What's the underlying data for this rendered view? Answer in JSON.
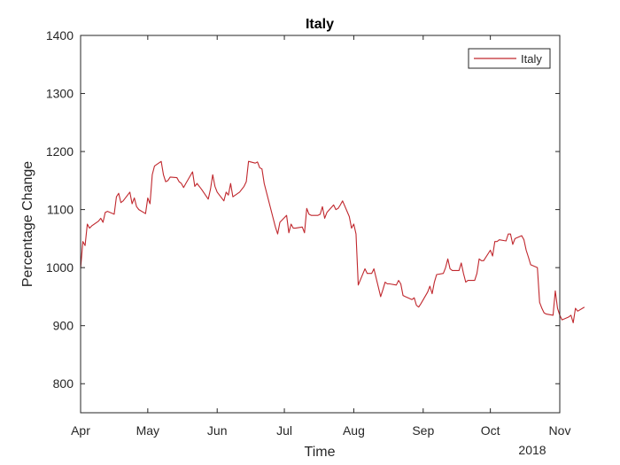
{
  "chart_data": {
    "type": "line",
    "title": "Italy",
    "xlabel": "Time",
    "ylabel": "Percentage Change",
    "year_label": "2018",
    "ylim": [
      750,
      1400
    ],
    "yticks": [
      800,
      900,
      1000,
      1100,
      1200,
      1300,
      1400
    ],
    "xlim": [
      "2018-04-01",
      "2018-11-01"
    ],
    "xticks": [
      {
        "date": "2018-04-01",
        "label": "Apr"
      },
      {
        "date": "2018-05-01",
        "label": "May"
      },
      {
        "date": "2018-06-01",
        "label": "Jun"
      },
      {
        "date": "2018-07-01",
        "label": "Jul"
      },
      {
        "date": "2018-08-01",
        "label": "Aug"
      },
      {
        "date": "2018-09-01",
        "label": "Sep"
      },
      {
        "date": "2018-10-01",
        "label": "Oct"
      },
      {
        "date": "2018-11-01",
        "label": "Nov"
      }
    ],
    "grid": false,
    "legend_position": "top-right",
    "series": [
      {
        "name": "Italy",
        "color": "#c0272d",
        "points": [
          [
            "2018-04-01",
            998
          ],
          [
            "2018-04-02",
            1045
          ],
          [
            "2018-04-03",
            1038
          ],
          [
            "2018-04-04",
            1075
          ],
          [
            "2018-04-05",
            1068
          ],
          [
            "2018-04-06",
            1072
          ],
          [
            "2018-04-09",
            1080
          ],
          [
            "2018-04-10",
            1085
          ],
          [
            "2018-04-11",
            1078
          ],
          [
            "2018-04-12",
            1095
          ],
          [
            "2018-04-13",
            1097
          ],
          [
            "2018-04-16",
            1092
          ],
          [
            "2018-04-17",
            1122
          ],
          [
            "2018-04-18",
            1128
          ],
          [
            "2018-04-19",
            1112
          ],
          [
            "2018-04-20",
            1115
          ],
          [
            "2018-04-23",
            1130
          ],
          [
            "2018-04-24",
            1110
          ],
          [
            "2018-04-25",
            1120
          ],
          [
            "2018-04-26",
            1105
          ],
          [
            "2018-04-27",
            1100
          ],
          [
            "2018-04-30",
            1093
          ],
          [
            "2018-05-01",
            1120
          ],
          [
            "2018-05-02",
            1110
          ],
          [
            "2018-05-03",
            1160
          ],
          [
            "2018-05-04",
            1175
          ],
          [
            "2018-05-07",
            1183
          ],
          [
            "2018-05-08",
            1160
          ],
          [
            "2018-05-09",
            1148
          ],
          [
            "2018-05-10",
            1150
          ],
          [
            "2018-05-11",
            1156
          ],
          [
            "2018-05-14",
            1155
          ],
          [
            "2018-05-15",
            1148
          ],
          [
            "2018-05-16",
            1145
          ],
          [
            "2018-05-17",
            1138
          ],
          [
            "2018-05-18",
            1145
          ],
          [
            "2018-05-21",
            1165
          ],
          [
            "2018-05-22",
            1140
          ],
          [
            "2018-05-23",
            1145
          ],
          [
            "2018-05-24",
            1140
          ],
          [
            "2018-05-25",
            1135
          ],
          [
            "2018-05-28",
            1118
          ],
          [
            "2018-05-29",
            1135
          ],
          [
            "2018-05-30",
            1160
          ],
          [
            "2018-05-31",
            1140
          ],
          [
            "2018-06-01",
            1130
          ],
          [
            "2018-06-04",
            1115
          ],
          [
            "2018-06-05",
            1130
          ],
          [
            "2018-06-06",
            1125
          ],
          [
            "2018-06-07",
            1145
          ],
          [
            "2018-06-08",
            1122
          ],
          [
            "2018-06-11",
            1130
          ],
          [
            "2018-06-12",
            1135
          ],
          [
            "2018-06-13",
            1140
          ],
          [
            "2018-06-14",
            1148
          ],
          [
            "2018-06-15",
            1183
          ],
          [
            "2018-06-18",
            1180
          ],
          [
            "2018-06-19",
            1182
          ],
          [
            "2018-06-20",
            1172
          ],
          [
            "2018-06-21",
            1170
          ],
          [
            "2018-06-22",
            1145
          ],
          [
            "2018-06-25",
            1100
          ],
          [
            "2018-06-26",
            1085
          ],
          [
            "2018-06-27",
            1070
          ],
          [
            "2018-06-28",
            1058
          ],
          [
            "2018-06-29",
            1078
          ],
          [
            "2018-07-02",
            1090
          ],
          [
            "2018-07-03",
            1060
          ],
          [
            "2018-07-04",
            1075
          ],
          [
            "2018-07-05",
            1068
          ],
          [
            "2018-07-06",
            1068
          ],
          [
            "2018-07-09",
            1070
          ],
          [
            "2018-07-10",
            1060
          ],
          [
            "2018-07-11",
            1102
          ],
          [
            "2018-07-12",
            1092
          ],
          [
            "2018-07-13",
            1090
          ],
          [
            "2018-07-16",
            1090
          ],
          [
            "2018-07-17",
            1092
          ],
          [
            "2018-07-18",
            1105
          ],
          [
            "2018-07-19",
            1085
          ],
          [
            "2018-07-20",
            1095
          ],
          [
            "2018-07-23",
            1108
          ],
          [
            "2018-07-24",
            1100
          ],
          [
            "2018-07-25",
            1102
          ],
          [
            "2018-07-26",
            1108
          ],
          [
            "2018-07-27",
            1115
          ],
          [
            "2018-07-30",
            1088
          ],
          [
            "2018-07-31",
            1068
          ],
          [
            "2018-08-01",
            1075
          ],
          [
            "2018-08-02",
            1058
          ],
          [
            "2018-08-03",
            970
          ],
          [
            "2018-08-06",
            998
          ],
          [
            "2018-08-07",
            990
          ],
          [
            "2018-08-08",
            990
          ],
          [
            "2018-08-09",
            990
          ],
          [
            "2018-08-10",
            998
          ],
          [
            "2018-08-13",
            950
          ],
          [
            "2018-08-14",
            962
          ],
          [
            "2018-08-15",
            975
          ],
          [
            "2018-08-16",
            972
          ],
          [
            "2018-08-17",
            972
          ],
          [
            "2018-08-20",
            970
          ],
          [
            "2018-08-21",
            978
          ],
          [
            "2018-08-22",
            972
          ],
          [
            "2018-08-23",
            952
          ],
          [
            "2018-08-24",
            950
          ],
          [
            "2018-08-27",
            945
          ],
          [
            "2018-08-28",
            948
          ],
          [
            "2018-08-29",
            935
          ],
          [
            "2018-08-30",
            932
          ],
          [
            "2018-08-31",
            938
          ],
          [
            "2018-09-03",
            958
          ],
          [
            "2018-09-04",
            968
          ],
          [
            "2018-09-05",
            955
          ],
          [
            "2018-09-06",
            975
          ],
          [
            "2018-09-07",
            988
          ],
          [
            "2018-09-10",
            990
          ],
          [
            "2018-09-11",
            1000
          ],
          [
            "2018-09-12",
            1015
          ],
          [
            "2018-09-13",
            998
          ],
          [
            "2018-09-14",
            995
          ],
          [
            "2018-09-17",
            995
          ],
          [
            "2018-09-18",
            1008
          ],
          [
            "2018-09-19",
            990
          ],
          [
            "2018-09-20",
            975
          ],
          [
            "2018-09-21",
            978
          ],
          [
            "2018-09-24",
            978
          ],
          [
            "2018-09-25",
            990
          ],
          [
            "2018-09-26",
            1015
          ],
          [
            "2018-09-27",
            1012
          ],
          [
            "2018-09-28",
            1012
          ],
          [
            "2018-10-01",
            1030
          ],
          [
            "2018-10-02",
            1020
          ],
          [
            "2018-10-03",
            1045
          ],
          [
            "2018-10-04",
            1045
          ],
          [
            "2018-10-05",
            1048
          ],
          [
            "2018-10-08",
            1046
          ],
          [
            "2018-10-09",
            1058
          ],
          [
            "2018-10-10",
            1058
          ],
          [
            "2018-10-11",
            1040
          ],
          [
            "2018-10-12",
            1050
          ],
          [
            "2018-10-15",
            1055
          ],
          [
            "2018-10-16",
            1048
          ],
          [
            "2018-10-17",
            1030
          ],
          [
            "2018-10-18",
            1018
          ],
          [
            "2018-10-19",
            1005
          ],
          [
            "2018-10-22",
            1000
          ],
          [
            "2018-10-23",
            940
          ],
          [
            "2018-10-24",
            930
          ],
          [
            "2018-10-25",
            922
          ],
          [
            "2018-10-26",
            920
          ],
          [
            "2018-10-29",
            918
          ],
          [
            "2018-10-30",
            960
          ],
          [
            "2018-10-31",
            930
          ],
          [
            "2018-11-01",
            918
          ],
          [
            "2018-11-02",
            910
          ],
          [
            "2018-11-05",
            915
          ],
          [
            "2018-11-06",
            918
          ],
          [
            "2018-11-07",
            905
          ],
          [
            "2018-11-08",
            930
          ],
          [
            "2018-11-09",
            925
          ],
          [
            "2018-11-12",
            932
          ]
        ]
      }
    ]
  }
}
